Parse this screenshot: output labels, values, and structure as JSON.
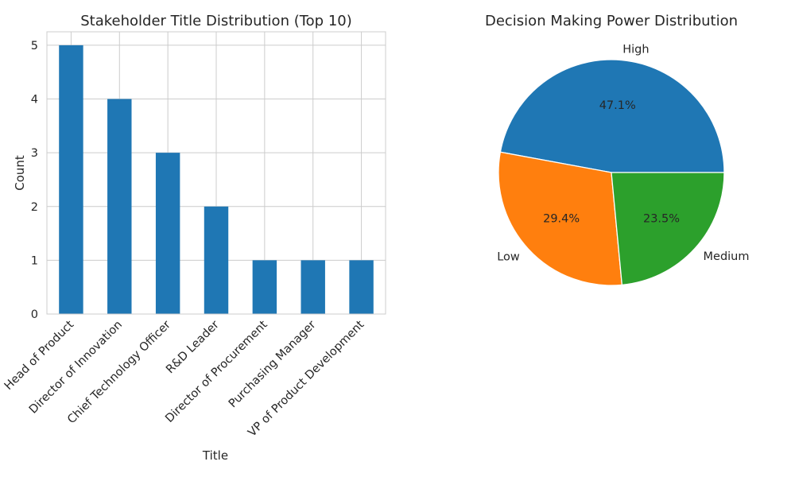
{
  "chart_data": [
    {
      "type": "bar",
      "title": "Stakeholder Title Distribution (Top 10)",
      "xlabel": "Title",
      "ylabel": "Count",
      "categories": [
        "Head of Product",
        "Director of Innovation",
        "Chief Technology Officer",
        "R&D Leader",
        "Director of Procurement",
        "Purchasing Manager",
        "VP of Product Development"
      ],
      "values": [
        5,
        4,
        3,
        2,
        1,
        1,
        1
      ],
      "ylim": [
        0,
        5.25
      ],
      "yticks": [
        "0",
        "1",
        "2",
        "3",
        "4",
        "5"
      ],
      "grid": true,
      "color": "#1f77b4"
    },
    {
      "type": "pie",
      "title": "Decision Making Power Distribution",
      "labels": [
        "High",
        "Low",
        "Medium"
      ],
      "values": [
        47.1,
        29.4,
        23.5
      ],
      "percent_labels": [
        "47.1%",
        "29.4%",
        "23.5%"
      ],
      "colors": [
        "#1f77b4",
        "#ff7f0e",
        "#2ca02c"
      ]
    }
  ]
}
